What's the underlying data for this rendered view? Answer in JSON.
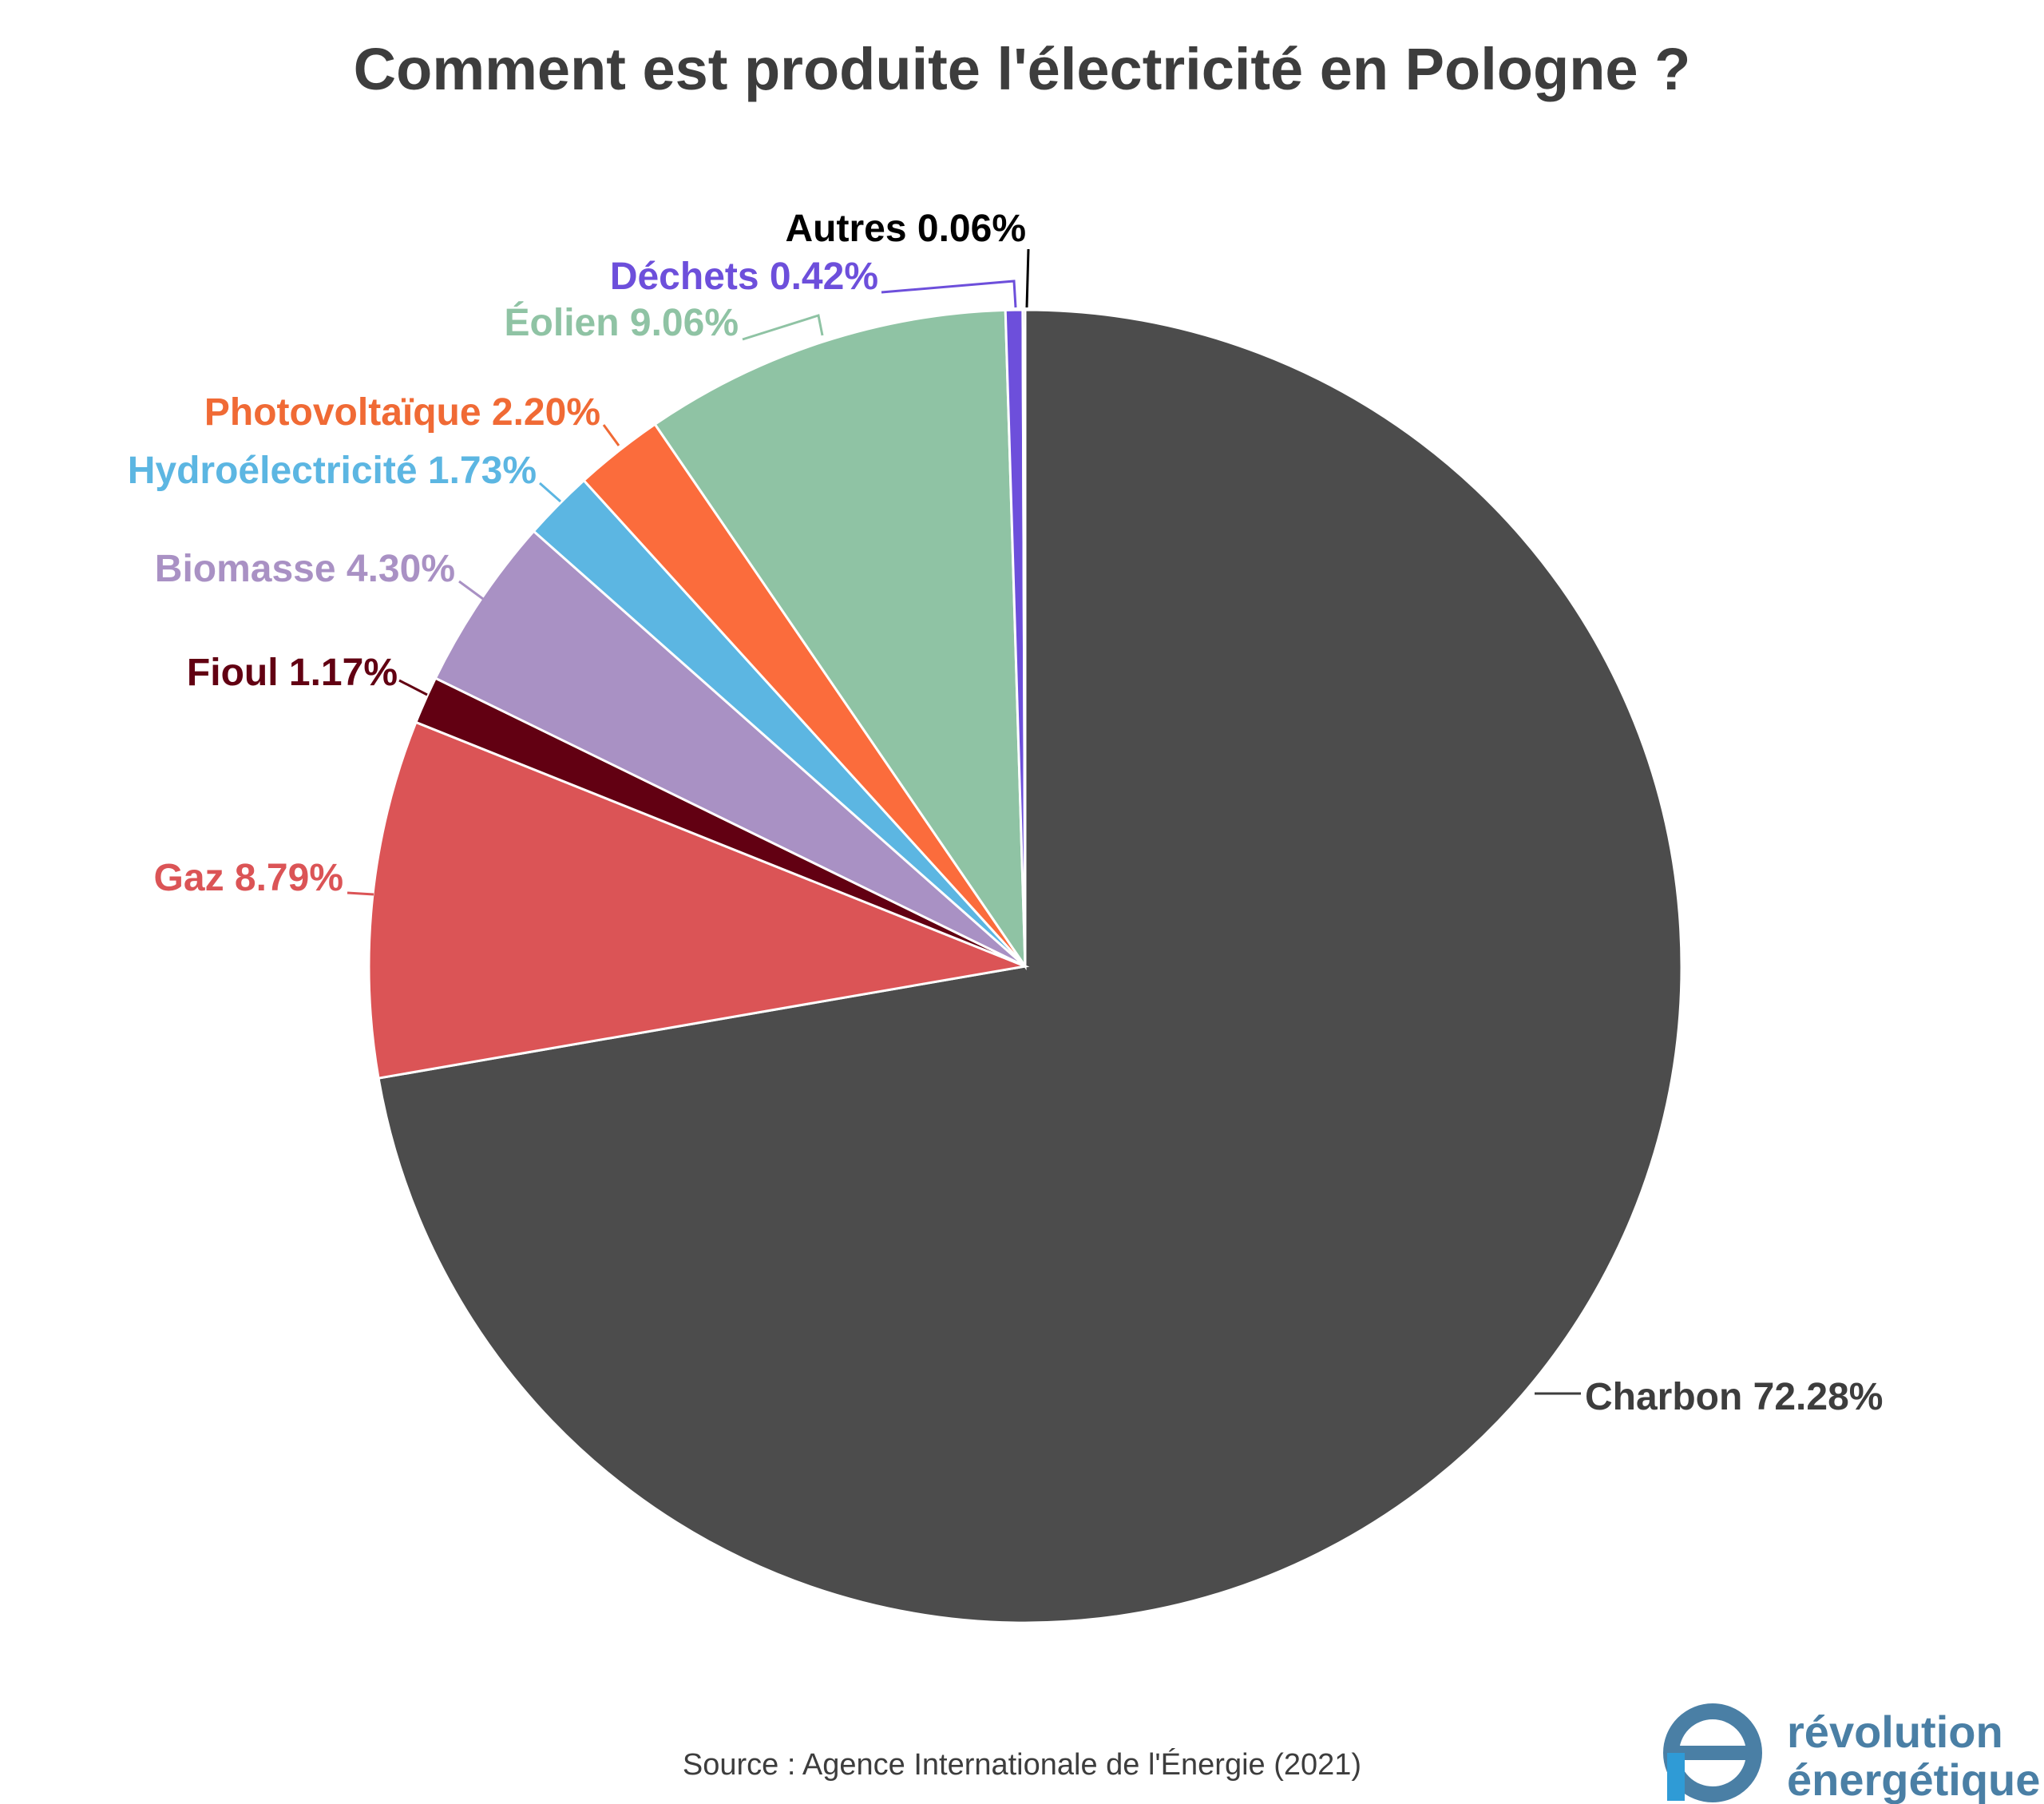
{
  "chart_data": {
    "type": "pie",
    "title": "Comment est produite l'électricité en Pologne ?",
    "slices": [
      {
        "name": "Charbon",
        "value": 72.28,
        "label": "Charbon 72.28%",
        "color": "#4c4c4c"
      },
      {
        "name": "Gaz",
        "value": 8.79,
        "label": "Gaz 8.79%",
        "color": "#db5456"
      },
      {
        "name": "Fioul",
        "value": 1.17,
        "label": "Fioul 1.17%",
        "color": "#620012"
      },
      {
        "name": "Biomasse",
        "value": 4.3,
        "label": "Biomasse 4.30%",
        "color": "#a991c4"
      },
      {
        "name": "Hydroélectricité",
        "value": 1.73,
        "label": "Hydroélectricité 1.73%",
        "color": "#5cb6e2"
      },
      {
        "name": "Photovoltaïque",
        "value": 2.2,
        "label": "Photovoltaïque 2.20%",
        "color": "#fb6c3c"
      },
      {
        "name": "Éolien",
        "value": 9.06,
        "label": "Éolien 9.06%",
        "color": "#8fc3a4"
      },
      {
        "name": "Déchets",
        "value": 0.42,
        "label": "Déchets 0.42%",
        "color": "#6d4fdb"
      },
      {
        "name": "Autres",
        "value": 0.06,
        "label": "Autres 0.06%",
        "color": "#000000"
      }
    ],
    "label_colors": {
      "Charbon": "#3d3d3d",
      "Gaz": "#db5456",
      "Fioul": "#620012",
      "Biomasse": "#a991c4",
      "Hydroélectricité": "#5cb6e2",
      "Photovoltaïque": "#f06a35",
      "Éolien": "#8fc3a4",
      "Déchets": "#6d4fdb",
      "Autres": "#000000"
    }
  },
  "source": "Source : Agence Internationale de l'Énergie (2021)",
  "brand": {
    "line1": "révolution",
    "line2": "énergétique",
    "icon": "e-logo-icon",
    "color": "#4a7fa5"
  }
}
